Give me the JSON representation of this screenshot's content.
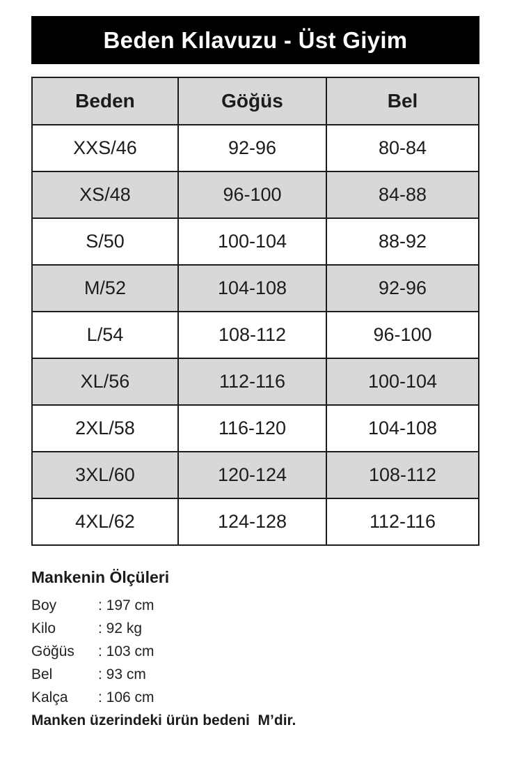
{
  "title": "Beden Kılavuzu - Üst Giyim",
  "table": {
    "headers": [
      "Beden",
      "Göğüs",
      "Bel"
    ],
    "rows": [
      [
        "XXS/46",
        "92-96",
        "80-84"
      ],
      [
        "XS/48",
        "96-100",
        "84-88"
      ],
      [
        "S/50",
        "100-104",
        "88-92"
      ],
      [
        "M/52",
        "104-108",
        "92-96"
      ],
      [
        "L/54",
        "108-112",
        "96-100"
      ],
      [
        "XL/56",
        "112-116",
        "100-104"
      ],
      [
        "2XL/58",
        "116-120",
        "104-108"
      ],
      [
        "3XL/60",
        "120-124",
        "108-112"
      ],
      [
        "4XL/62",
        "124-128",
        "112-116"
      ]
    ]
  },
  "model_info": {
    "heading": "Mankenin Ölçüleri",
    "measurements": [
      {
        "label": "Boy",
        "value": ": 197 cm"
      },
      {
        "label": "Kilo",
        "value": ": 92 kg"
      },
      {
        "label": "Göğüs",
        "value": ": 103 cm"
      },
      {
        "label": "Bel",
        "value": ": 93 cm"
      },
      {
        "label": "Kalça",
        "value": ": 106 cm"
      }
    ],
    "note": "Manken üzerindeki ürün bedeni  M’dir."
  },
  "colors": {
    "title_bar_bg": "#000000",
    "title_text": "#ffffff",
    "row_alt_bg": "#d8d8d8",
    "border": "#1c1c1c",
    "text": "#1c1c1c"
  }
}
